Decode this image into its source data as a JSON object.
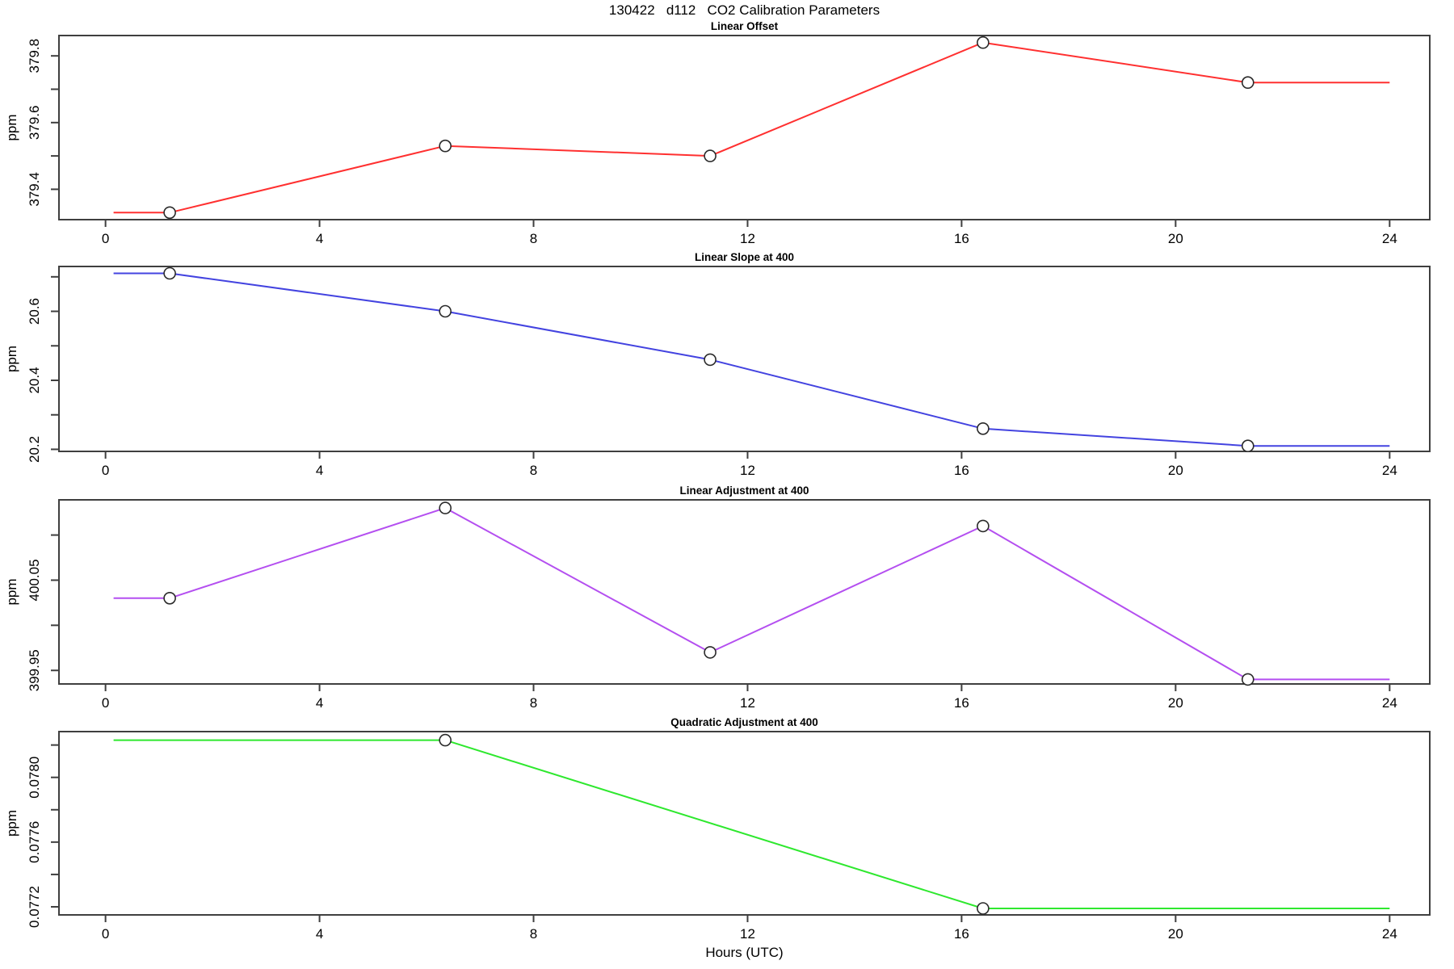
{
  "header": {
    "title": "130422   d112   CO2 Calibration Parameters"
  },
  "x_axis": {
    "label": "Hours (UTC)",
    "ticks": [
      0,
      4,
      8,
      12,
      16,
      20,
      24
    ],
    "xlim": [
      -0.87,
      24.75
    ],
    "line_xstart": 0.15,
    "line_xend": 24
  },
  "chart_data": [
    {
      "type": "line",
      "title": "Linear Offset",
      "ylabel": "ppm",
      "xlabel": "",
      "color": "#ff3030",
      "marker": "open-circle",
      "grid": false,
      "x": [
        1.2,
        6.35,
        11.3,
        16.4,
        21.35
      ],
      "values": [
        379.33,
        379.53,
        379.5,
        379.84,
        379.72
      ],
      "ylim": [
        379.309,
        379.861
      ],
      "yticks": [
        {
          "value": 379.4,
          "label": "379.4"
        },
        {
          "value": 379.5,
          "label": ""
        },
        {
          "value": 379.6,
          "label": "379.6"
        },
        {
          "value": 379.7,
          "label": ""
        },
        {
          "value": 379.8,
          "label": "379.8"
        }
      ]
    },
    {
      "type": "line",
      "title": "Linear Slope at 400",
      "ylabel": "ppm",
      "xlabel": "",
      "color": "#4343e0",
      "marker": "open-circle",
      "grid": false,
      "x": [
        1.2,
        6.35,
        11.3,
        16.4,
        21.35
      ],
      "values": [
        20.71,
        20.6,
        20.46,
        20.26,
        20.21
      ],
      "ylim": [
        20.194,
        20.73
      ],
      "yticks": [
        {
          "value": 20.2,
          "label": "20.2"
        },
        {
          "value": 20.3,
          "label": ""
        },
        {
          "value": 20.4,
          "label": "20.4"
        },
        {
          "value": 20.5,
          "label": ""
        },
        {
          "value": 20.6,
          "label": "20.6"
        },
        {
          "value": 20.7,
          "label": ""
        }
      ]
    },
    {
      "type": "line",
      "title": "Linear Adjustment at 400",
      "ylabel": "ppm",
      "xlabel": "",
      "color": "#b44ff0",
      "marker": "open-circle",
      "grid": false,
      "x": [
        1.2,
        6.35,
        11.3,
        16.4,
        21.35
      ],
      "values": [
        400.03,
        400.13,
        399.97,
        400.11,
        399.94
      ],
      "ylim": [
        399.935,
        400.139
      ],
      "yticks": [
        {
          "value": 399.95,
          "label": "399.95"
        },
        {
          "value": 400.0,
          "label": ""
        },
        {
          "value": 400.05,
          "label": "400.05"
        },
        {
          "value": 400.1,
          "label": ""
        }
      ]
    },
    {
      "type": "line",
      "title": "Quadratic Adjustment at 400",
      "ylabel": "ppm",
      "xlabel": "Hours (UTC)",
      "color": "#2ee82e",
      "marker": "open-circle",
      "grid": false,
      "x": [
        6.35,
        16.4
      ],
      "values": [
        0.07823,
        0.07719
      ],
      "ylim": [
        0.07715,
        0.078283
      ],
      "yticks": [
        {
          "value": 0.0772,
          "label": "0.0772"
        },
        {
          "value": 0.0774,
          "label": ""
        },
        {
          "value": 0.0776,
          "label": "0.0776"
        },
        {
          "value": 0.0778,
          "label": ""
        },
        {
          "value": 0.078,
          "label": "0.0780"
        },
        {
          "value": 0.0782,
          "label": ""
        }
      ]
    }
  ]
}
